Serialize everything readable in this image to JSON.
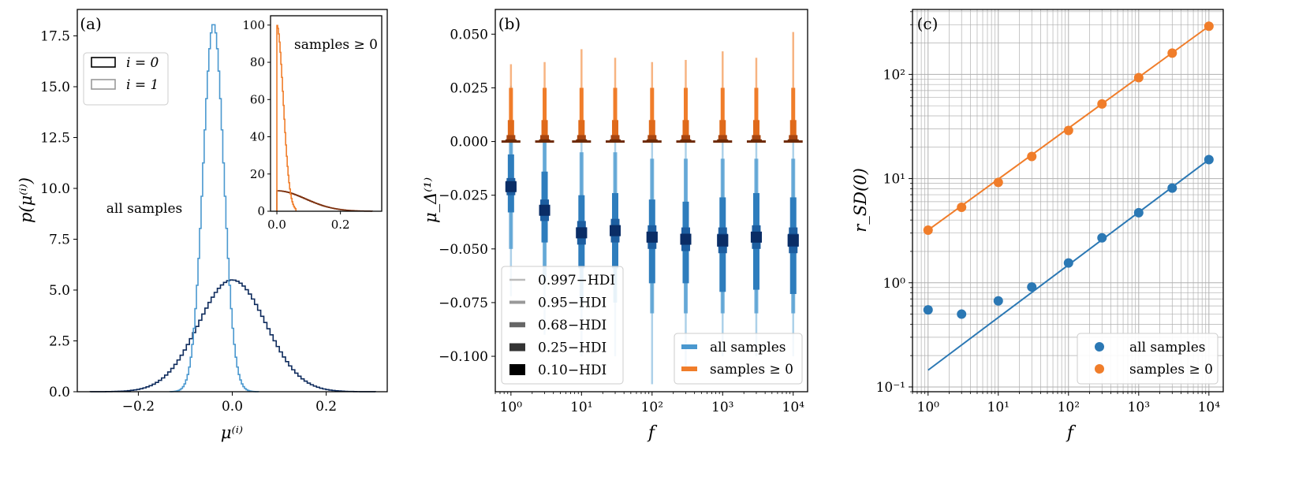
{
  "chart_data": [
    {
      "panel": "(a)",
      "type": "histogram",
      "xlabel": "μ⁽ⁱ⁾",
      "ylabel": "p(μ⁽ⁱ⁾)",
      "xlim": [
        -0.33,
        0.33
      ],
      "ylim": [
        0,
        18.8
      ],
      "xticks": [
        -0.2,
        0.0,
        0.2
      ],
      "xtick_labels": [
        "−0.2",
        "0.0",
        "0.2"
      ],
      "yticks": [
        0,
        2.5,
        5,
        7.5,
        10,
        12.5,
        15,
        17.5
      ],
      "ytick_labels": [
        "0.0",
        "2.5",
        "5.0",
        "7.5",
        "10.0",
        "12.5",
        "15.0",
        "17.5"
      ],
      "annotation": "all samples",
      "legend": [
        {
          "label": "i = 0",
          "color": "#000000"
        },
        {
          "label": "i = 1",
          "color": "#999999"
        }
      ],
      "series": [
        {
          "name": "i = 0",
          "color": "#0d2a5c",
          "dist": "normal",
          "mean": 0.0,
          "sd": 0.072,
          "peak": 5.5
        },
        {
          "name": "i = 1",
          "color": "#4a98cf",
          "dist": "normal",
          "mean": -0.04,
          "sd": 0.022,
          "peak": 18.1
        }
      ],
      "inset": {
        "annotation": "samples ≥ 0",
        "xlim": [
          -0.02,
          0.33
        ],
        "ylim": [
          0,
          105
        ],
        "xticks": [
          0.0,
          0.2
        ],
        "xtick_labels": [
          "0.0",
          "0.2"
        ],
        "yticks": [
          0,
          20,
          40,
          60,
          80,
          100
        ],
        "ytick_labels": [
          "0",
          "20",
          "40",
          "60",
          "80",
          "100"
        ],
        "series": [
          {
            "name": "i = 0",
            "color": "#7a2d0a",
            "dist": "halfnormal",
            "peak": 11,
            "scale": 0.09
          },
          {
            "name": "i = 1",
            "color": "#f07d2a",
            "dist": "halfnormal",
            "peak": 100,
            "scale": 0.02
          }
        ]
      }
    },
    {
      "panel": "(b)",
      "type": "interval",
      "xlabel": "f",
      "ylabel": "μ_Δ⁽¹⁾",
      "xscale": "log",
      "xlim": [
        0.6,
        16000
      ],
      "ylim": [
        -0.1165,
        0.0615
      ],
      "xticks": [
        1,
        10,
        100,
        1000,
        10000
      ],
      "xtick_labels": [
        "10⁰",
        "10¹",
        "10²",
        "10³",
        "10⁴"
      ],
      "yticks": [
        0.05,
        0.025,
        0.0,
        -0.025,
        -0.05,
        -0.075,
        -0.1
      ],
      "ytick_labels": [
        "0.050",
        "0.025",
        "0.000",
        "−0.025",
        "−0.050",
        "−0.075",
        "−0.100"
      ],
      "hdi_legend": [
        "0.997−HDI",
        "0.95−HDI",
        "0.68−HDI",
        "0.25−HDI",
        "0.10−HDI"
      ],
      "series_legend": [
        {
          "label": "all samples",
          "color": "#4a98cf"
        },
        {
          "label": "samples ≥ 0",
          "color": "#f07d2a"
        }
      ],
      "f": [
        1,
        3,
        10,
        30,
        100,
        300,
        1000,
        3000,
        10000
      ],
      "all_samples": {
        "median": [
          -0.021,
          -0.032,
          -0.0425,
          -0.0415,
          -0.0445,
          -0.0455,
          -0.046,
          -0.0445,
          -0.046
        ],
        "hdi997": [
          [
            -0.072,
            0.026
          ],
          [
            -0.09,
            0.024
          ],
          [
            -0.1,
            0.025
          ],
          [
            -0.1,
            0.025
          ],
          [
            -0.113,
            0.025
          ],
          [
            -0.105,
            0.025
          ],
          [
            -0.1,
            0.025
          ],
          [
            -0.1,
            0.025
          ],
          [
            -0.1,
            0.025
          ]
        ],
        "hdi95": [
          [
            -0.05,
            0.0
          ],
          [
            -0.065,
            0.0
          ],
          [
            -0.075,
            -0.005
          ],
          [
            -0.075,
            -0.005
          ],
          [
            -0.08,
            -0.008
          ],
          [
            -0.08,
            -0.008
          ],
          [
            -0.08,
            -0.008
          ],
          [
            -0.08,
            -0.008
          ],
          [
            -0.08,
            -0.008
          ]
        ],
        "hdi68": [
          [
            -0.033,
            -0.006
          ],
          [
            -0.047,
            -0.014
          ],
          [
            -0.059,
            -0.025
          ],
          [
            -0.059,
            -0.024
          ],
          [
            -0.066,
            -0.027
          ],
          [
            -0.066,
            -0.028
          ],
          [
            -0.07,
            -0.026
          ],
          [
            -0.069,
            -0.024
          ],
          [
            -0.071,
            -0.026
          ]
        ],
        "hdi25": [
          [
            -0.025,
            -0.017
          ],
          [
            -0.037,
            -0.027
          ],
          [
            -0.048,
            -0.037
          ],
          [
            -0.047,
            -0.036
          ],
          [
            -0.05,
            -0.039
          ],
          [
            -0.051,
            -0.04
          ],
          [
            -0.052,
            -0.04
          ],
          [
            -0.05,
            -0.039
          ],
          [
            -0.052,
            -0.04
          ]
        ],
        "hdi10": [
          [
            -0.023,
            -0.019
          ],
          [
            -0.034,
            -0.03
          ],
          [
            -0.045,
            -0.04
          ],
          [
            -0.044,
            -0.039
          ],
          [
            -0.047,
            -0.042
          ],
          [
            -0.048,
            -0.043
          ],
          [
            -0.049,
            -0.043
          ],
          [
            -0.047,
            -0.042
          ],
          [
            -0.049,
            -0.043
          ]
        ]
      },
      "nonneg_samples": {
        "hdi997": [
          0,
          0.036
        ],
        "hdi95": [
          0,
          0.025
        ],
        "hdi68": [
          0,
          0.01
        ],
        "hdi25": [
          0,
          0.003
        ],
        "hdi10": [
          0,
          0.001
        ],
        "hdi997_by_f": [
          0.036,
          0.037,
          0.043,
          0.039,
          0.037,
          0.038,
          0.042,
          0.039,
          0.051
        ]
      }
    },
    {
      "panel": "(c)",
      "type": "scatter",
      "xlabel": "f",
      "ylabel": "r_SD(0)",
      "xscale": "log",
      "yscale": "log",
      "xlim": [
        0.6,
        16000
      ],
      "ylim": [
        0.09,
        420
      ],
      "xticks": [
        1,
        10,
        100,
        1000,
        10000
      ],
      "xtick_labels": [
        "10⁰",
        "10¹",
        "10²",
        "10³",
        "10⁴"
      ],
      "yticks": [
        0.1,
        1,
        10,
        100
      ],
      "ytick_labels": [
        "10⁻¹",
        "10⁰",
        "10¹",
        "10²"
      ],
      "grid": true,
      "legend": [
        {
          "label": "all samples",
          "color": "#2b78b4"
        },
        {
          "label": "samples ≥ 0",
          "color": "#f07d2a"
        }
      ],
      "series": [
        {
          "name": "all samples",
          "color": "#2b78b4",
          "x": [
            1,
            3,
            10,
            30,
            100,
            300,
            1000,
            3000,
            10000
          ],
          "y": [
            0.55,
            0.5,
            0.67,
            0.91,
            1.55,
            2.7,
            4.7,
            8.1,
            15.2
          ],
          "fit": [
            [
              1,
              0.145
            ],
            [
              10000,
              15.2
            ]
          ]
        },
        {
          "name": "samples ≥ 0",
          "color": "#f07d2a",
          "x": [
            1,
            3,
            10,
            30,
            100,
            300,
            1000,
            3000,
            10000
          ],
          "y": [
            3.2,
            5.3,
            9.2,
            16.3,
            29.0,
            52.0,
            93.0,
            160.0,
            290.0
          ],
          "fit": [
            [
              1,
              3.2
            ],
            [
              10000,
              290.0
            ]
          ]
        }
      ]
    }
  ]
}
